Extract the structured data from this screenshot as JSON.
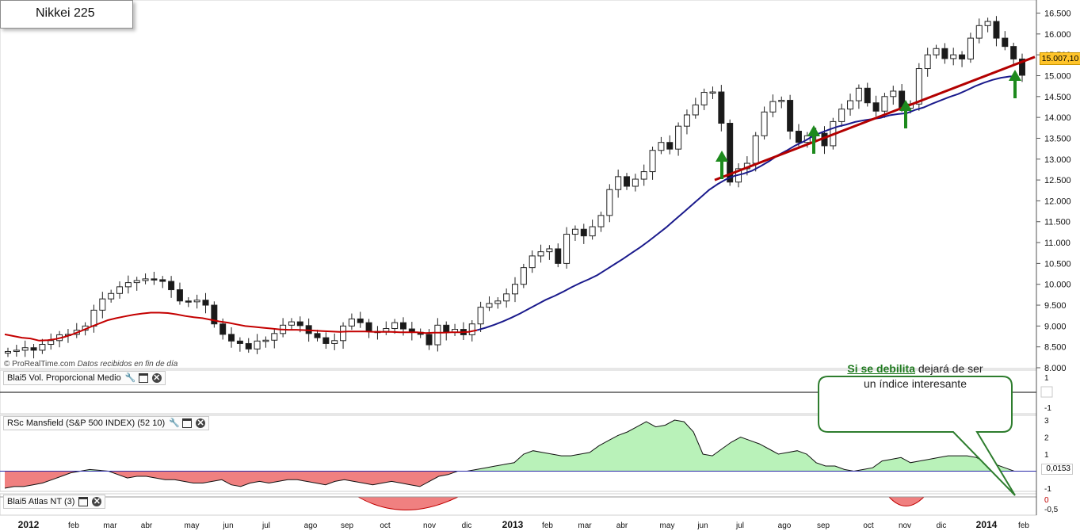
{
  "title": "Nikkei 225",
  "source": {
    "brand": "© ProRealTime.com",
    "note": "Datos recibidos en fin de día"
  },
  "last_price_label": "15.007,10",
  "callout": {
    "highlight": "Si se debilita",
    "rest_line1": " dejará de ser",
    "line2": "un índice interesante"
  },
  "panels": {
    "volume": {
      "label": "Blai5 Vol. Proporcional Medio",
      "ticks": [
        "1",
        "0",
        "-1"
      ]
    },
    "mansfield": {
      "label": "RSc Mansfield (S&P 500 INDEX) (52 10)",
      "ticks": [
        "3",
        "2",
        "1",
        "-1"
      ],
      "value_label": "0,0153"
    },
    "atlas": {
      "label": "Blai5 Atlas NT (3)",
      "ticks": [
        "0",
        "-0,5"
      ]
    }
  },
  "colors": {
    "ma_blue": "#1a1a8c",
    "ma_red": "#c40000",
    "trend": "#b30000",
    "arrow": "#1d8a1d",
    "rs_positive": "#b9f2b9",
    "rs_negative": "#f08080",
    "price_tag": "#ffc42a"
  },
  "chart_data": [
    {
      "type": "candlestick",
      "title": "Nikkei 225",
      "ylim": [
        8000,
        16700
      ],
      "y_ticks": [
        "8.000",
        "8.500",
        "9.000",
        "9.500",
        "10.000",
        "10.500",
        "11.000",
        "11.500",
        "12.000",
        "12.500",
        "13.000",
        "13.500",
        "14.000",
        "14.500",
        "15.000",
        "15.500",
        "16.000",
        "16.500"
      ],
      "y_tick_values": [
        8000,
        8500,
        9000,
        9500,
        10000,
        10500,
        11000,
        11500,
        12000,
        12500,
        13000,
        13500,
        14000,
        14500,
        15000,
        15500,
        16000,
        16500
      ],
      "x_labels": [
        "2012",
        "feb",
        "mar",
        "abr",
        "may",
        "jun",
        "jul",
        "ago",
        "sep",
        "oct",
        "nov",
        "dic",
        "2013",
        "feb",
        "mar",
        "abr",
        "may",
        "jun",
        "jul",
        "ago",
        "sep",
        "oct",
        "nov",
        "dic",
        "2014",
        "feb"
      ],
      "closes": [
        8390,
        8420,
        8480,
        8420,
        8560,
        8650,
        8790,
        8800,
        8900,
        9000,
        9380,
        9650,
        9780,
        9940,
        10040,
        10090,
        10130,
        10110,
        10070,
        9870,
        9600,
        9580,
        9620,
        9500,
        9050,
        8800,
        8640,
        8580,
        8450,
        8640,
        8660,
        8820,
        9020,
        9100,
        9010,
        8820,
        8720,
        8580,
        8650,
        9000,
        9170,
        9080,
        8870,
        8870,
        8940,
        9080,
        8930,
        8850,
        8800,
        8550,
        9020,
        8850,
        8920,
        8790,
        9050,
        9450,
        9540,
        9600,
        9770,
        10000,
        10400,
        10680,
        10780,
        10850,
        10500,
        11200,
        11320,
        11160,
        11380,
        11650,
        12270,
        12580,
        12350,
        12520,
        12700,
        13210,
        13400,
        13240,
        13790,
        14060,
        14300,
        14600,
        14610,
        13860,
        12450,
        12770,
        12900,
        13560,
        14130,
        14380,
        14410,
        13670,
        13400,
        13560,
        13620,
        13320,
        13900,
        14200,
        14400,
        14700,
        14350,
        14150,
        14500,
        14630,
        14220,
        14320,
        15170,
        15500,
        15650,
        15410,
        15500,
        15400,
        15900,
        16200,
        16300,
        15900,
        15700,
        15400,
        15010
      ],
      "ma": [
        8800,
        8760,
        8720,
        8700,
        8650,
        8660,
        8690,
        8740,
        8810,
        8890,
        8980,
        9060,
        9140,
        9190,
        9230,
        9270,
        9300,
        9320,
        9320,
        9310,
        9280,
        9240,
        9210,
        9190,
        9150,
        9110,
        9080,
        9040,
        9000,
        8980,
        8960,
        8940,
        8920,
        8910,
        8910,
        8900,
        8890,
        8880,
        8870,
        8860,
        8870,
        8870,
        8870,
        8860,
        8860,
        8860,
        8850,
        8850,
        8850,
        8830,
        8840,
        8840,
        8850,
        8850,
        8860,
        8900,
        8960,
        9030,
        9110,
        9200,
        9300,
        9410,
        9520,
        9630,
        9720,
        9820,
        9930,
        10030,
        10120,
        10220,
        10350,
        10480,
        10610,
        10750,
        10890,
        11040,
        11200,
        11360,
        11540,
        11720,
        11900,
        12080,
        12260,
        12400,
        12520,
        12600,
        12650,
        12720,
        12830,
        12950,
        13090,
        13200,
        13320,
        13420,
        13540,
        13630,
        13710,
        13780,
        13830,
        13890,
        13930,
        13960,
        13990,
        14050,
        14080,
        14100,
        14180,
        14240,
        14330,
        14410,
        14490,
        14560,
        14650,
        14750,
        14830,
        14900,
        14950,
        14980,
        14990
      ],
      "ma_red_until_index": 55,
      "trendline": {
        "from": [
          12510,
          "jun 2013"
        ],
        "to": [
          15000,
          "feb 2014"
        ]
      },
      "support_arrows": [
        "jun 2013",
        "ago 2013",
        "oct 2013",
        "ene 2014"
      ],
      "last": 15007.1
    },
    {
      "type": "line",
      "title": "Blai5 Vol. Proporcional Medio",
      "ylim": [
        -1,
        1
      ],
      "values": [
        0
      ]
    },
    {
      "type": "area",
      "title": "RSc Mansfield (S&P 500 INDEX) (52 10)",
      "ylim": [
        -1,
        3
      ],
      "values": [
        -1.0,
        -0.9,
        -0.9,
        -0.8,
        -0.7,
        -0.5,
        -0.3,
        -0.1,
        0.0,
        0.1,
        0.05,
        0.0,
        -0.2,
        -0.4,
        -0.3,
        -0.3,
        -0.4,
        -0.5,
        -0.5,
        -0.6,
        -0.7,
        -0.7,
        -0.6,
        -0.5,
        -0.8,
        -0.9,
        -0.7,
        -0.6,
        -0.7,
        -0.6,
        -0.5,
        -0.5,
        -0.6,
        -0.7,
        -0.8,
        -0.6,
        -0.5,
        -0.6,
        -0.7,
        -0.8,
        -0.7,
        -0.6,
        -0.7,
        -0.8,
        -0.9,
        -0.6,
        -0.3,
        -0.2,
        0.0,
        0.0,
        0.1,
        0.2,
        0.3,
        0.4,
        0.5,
        1.0,
        1.2,
        1.1,
        1.0,
        0.9,
        0.9,
        1.0,
        1.1,
        1.5,
        1.8,
        2.1,
        2.3,
        2.6,
        2.9,
        2.6,
        2.7,
        3.0,
        2.9,
        2.3,
        1.0,
        0.9,
        1.3,
        1.7,
        2.0,
        1.8,
        1.6,
        1.3,
        1.0,
        1.1,
        1.2,
        1.0,
        0.5,
        0.3,
        0.3,
        0.1,
        0.0,
        0.1,
        0.2,
        0.6,
        0.7,
        0.8,
        0.5,
        0.6,
        0.7,
        0.8,
        0.9,
        0.9,
        0.9,
        0.8,
        0.5,
        0.4,
        0.2,
        0.0
      ],
      "last": 0.0153
    },
    {
      "type": "area",
      "title": "Blai5 Atlas NT (3)",
      "ylim": [
        -0.5,
        0
      ],
      "values": [
        0
      ]
    }
  ]
}
